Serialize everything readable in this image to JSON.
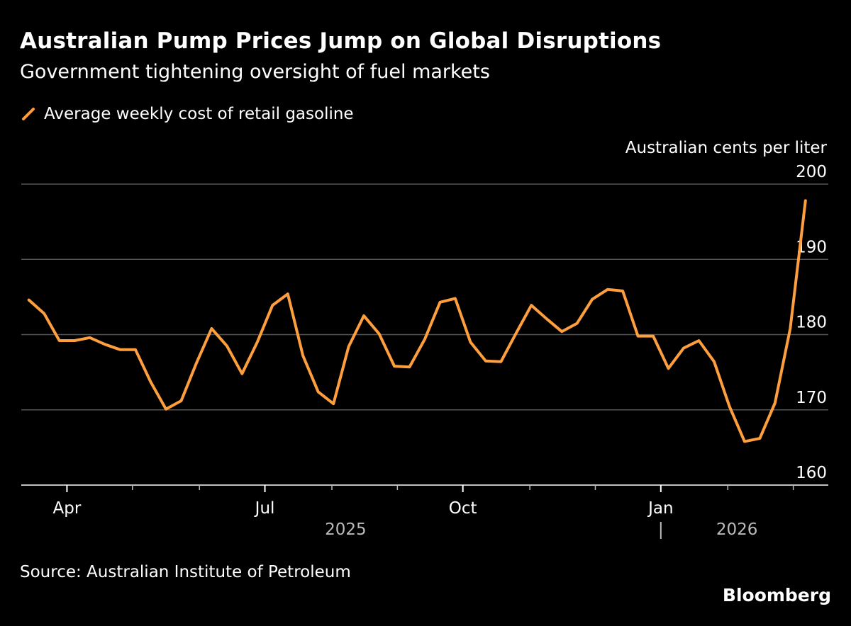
{
  "title": "Australian Pump Prices Jump on Global Disruptions",
  "subtitle": "Government tightening oversight of fuel markets",
  "source": "Source: Australian Institute of Petroleum",
  "brand": "Bloomberg",
  "colors": {
    "background": "#000000",
    "line": "#FF9E3D",
    "grid": "#555555",
    "text": "#FFFFFF",
    "muted": "#BBBBBB"
  },
  "chart_data": {
    "type": "line",
    "title": "Australian Pump Prices Jump on Global Disruptions",
    "subtitle": "Government tightening oversight of fuel markets",
    "ylabel": "Australian cents per liter",
    "ylim": [
      160,
      200
    ],
    "yticks": [
      160,
      170,
      180,
      190,
      200
    ],
    "grid": true,
    "legend_position": "top-left",
    "x_range_weeks": [
      0,
      53
    ],
    "x_ticks_weeks": [
      3,
      7.3,
      11.7,
      16,
      20.4,
      24.7,
      29,
      33.4,
      37.7,
      42,
      46.4,
      50.7
    ],
    "x_labels": [
      {
        "label": "Apr",
        "week": 3
      },
      {
        "label": "Jul",
        "week": 16
      },
      {
        "label": "Oct",
        "week": 29
      },
      {
        "label": "Jan",
        "week": 42
      }
    ],
    "year_labels": [
      {
        "label": "2025",
        "week": 21.3
      },
      {
        "label": "2026",
        "week": 47
      }
    ],
    "year_divider_week": 42,
    "series": [
      {
        "name": "Average weekly cost of retail gasoline",
        "x": [
          0.5,
          1.5,
          2.5,
          3.5,
          4.5,
          5.5,
          6.5,
          7.5,
          8.5,
          9.5,
          10.5,
          11.5,
          12.5,
          13.5,
          14.5,
          15.5,
          16.5,
          17.5,
          18.5,
          19.5,
          20.5,
          21.5,
          22.5,
          23.5,
          24.5,
          25.5,
          26.5,
          27.5,
          28.5,
          29.5,
          30.5,
          31.5,
          32.5,
          33.5,
          34.5,
          35.5,
          36.5,
          37.5,
          38.5,
          39.5,
          40.5,
          41.5,
          42.5,
          43.5,
          44.5,
          45.5,
          46.5,
          47.5,
          48.5,
          49.5,
          50.5,
          51.5
        ],
        "values": [
          184.6,
          182.8,
          179.2,
          179.2,
          179.6,
          178.7,
          178.0,
          178.0,
          173.7,
          170.1,
          171.2,
          176.2,
          180.8,
          178.5,
          174.8,
          179.0,
          183.9,
          185.4,
          177.2,
          172.4,
          170.8,
          178.4,
          182.5,
          180.1,
          175.8,
          175.7,
          179.4,
          184.3,
          184.8,
          179.0,
          176.5,
          176.4,
          180.2,
          183.9,
          182.1,
          180.4,
          181.5,
          184.7,
          186.0,
          185.8,
          179.8,
          179.8,
          175.5,
          178.2,
          179.2,
          176.4,
          170.5,
          165.8,
          166.2,
          170.9,
          180.8,
          197.8
        ]
      }
    ]
  }
}
